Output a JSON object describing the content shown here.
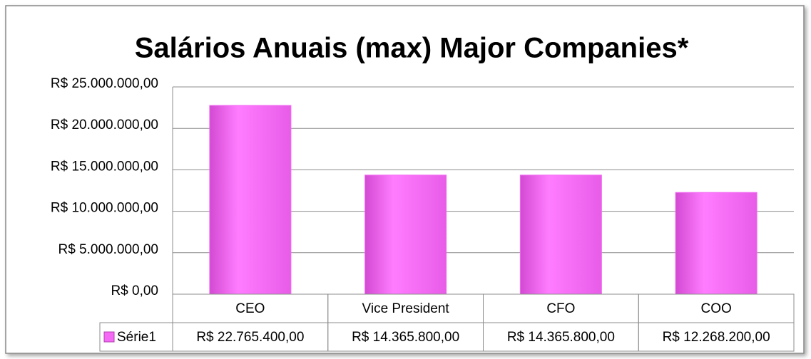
{
  "chart_data": {
    "type": "bar",
    "title": "Salários Anuais (max) Major Companies*",
    "categories": [
      "CEO",
      "Vice President",
      "CFO",
      "COO"
    ],
    "series": [
      {
        "name": "Série1",
        "color": "#f46af4",
        "values": [
          22765400,
          14365800,
          14365800,
          12268200
        ],
        "value_labels": [
          "R$ 22.765.400,00",
          "R$ 14.365.800,00",
          "R$ 14.365.800,00",
          "R$ 12.268.200,00"
        ]
      }
    ],
    "ylim": [
      0,
      25000000
    ],
    "yticks": [
      {
        "value": 0,
        "label": "R$ 0,00"
      },
      {
        "value": 5000000,
        "label": "R$ 5.000.000,00"
      },
      {
        "value": 10000000,
        "label": "R$ 10.000.000,00"
      },
      {
        "value": 15000000,
        "label": "R$ 15.000.000,00"
      },
      {
        "value": 20000000,
        "label": "R$ 20.000.000,00"
      },
      {
        "value": 25000000,
        "label": "R$ 25.000.000,00"
      }
    ],
    "grid": true,
    "data_table": true
  }
}
